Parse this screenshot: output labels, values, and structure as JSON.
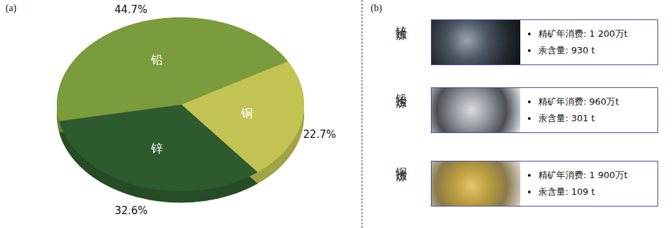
{
  "chart_data": {
    "type": "pie",
    "categories": [
      "铜",
      "锌",
      "铅"
    ],
    "values": [
      22.7,
      32.6,
      44.7
    ],
    "value_labels": [
      "22.7%",
      "32.6%",
      "44.7%"
    ],
    "colors": [
      "#c2c352",
      "#2e5b2d",
      "#7a9c3c"
    ],
    "data_labels": true
  },
  "panel_labels": [
    "(a)",
    "(b)"
  ],
  "side_panel": {
    "rows": [
      {
        "title": "锌冶炼",
        "items": [
          "精矿年消费: 1 200万t",
          "汞含量: 930 t"
        ]
      },
      {
        "title": "铅冶炼",
        "items": [
          "精矿年消费: 960万t",
          "汞含量: 301 t"
        ]
      },
      {
        "title": "铜冶炼",
        "items": [
          "精矿年消费: 1 900万t",
          "汞含量: 109 t"
        ]
      }
    ]
  }
}
